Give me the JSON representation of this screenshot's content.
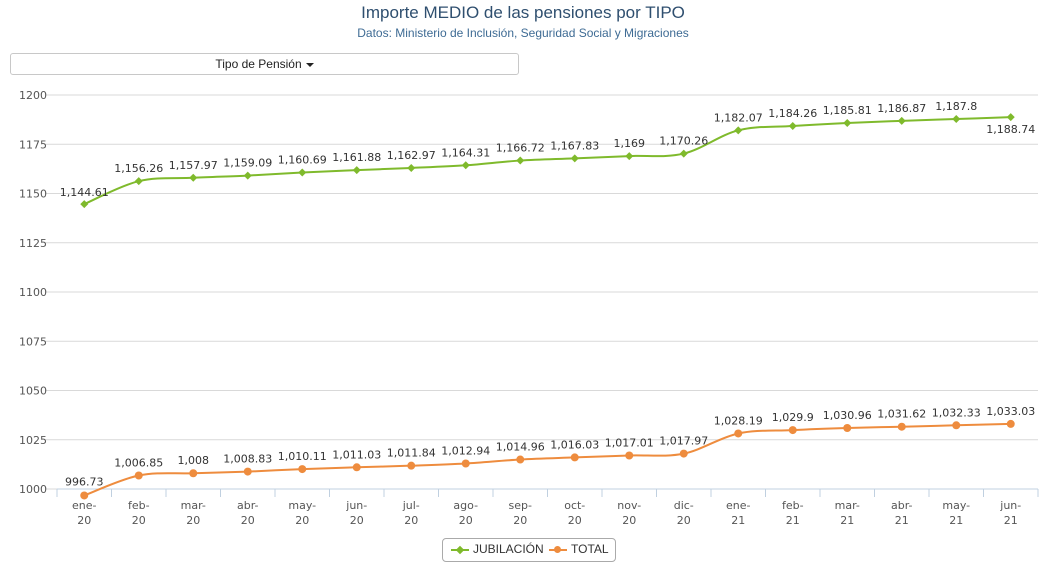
{
  "header": {
    "title": "Importe MEDIO de las pensiones por TIPO",
    "subtitle": "Datos: Ministerio de Inclusión, Seguridad Social y Migraciones"
  },
  "filter": {
    "label": "Tipo de Pensión"
  },
  "colors": {
    "jubilacion": "#7fba2c",
    "total": "#ee8c3e",
    "grid": "#d9d9d9"
  },
  "chart_data": {
    "type": "line",
    "ylim": [
      1000,
      1200
    ],
    "yticks": [
      1000,
      1025,
      1050,
      1075,
      1100,
      1125,
      1150,
      1175,
      1200
    ],
    "grid": true,
    "legend_position": "bottom-center",
    "categories": [
      [
        "ene-",
        "20"
      ],
      [
        "feb-",
        "20"
      ],
      [
        "mar-",
        "20"
      ],
      [
        "abr-",
        "20"
      ],
      [
        "may-",
        "20"
      ],
      [
        "jun-",
        "20"
      ],
      [
        "jul-",
        "20"
      ],
      [
        "ago-",
        "20"
      ],
      [
        "sep-",
        "20"
      ],
      [
        "oct-",
        "20"
      ],
      [
        "nov-",
        "20"
      ],
      [
        "dic-",
        "20"
      ],
      [
        "ene-",
        "21"
      ],
      [
        "feb-",
        "21"
      ],
      [
        "mar-",
        "21"
      ],
      [
        "abr-",
        "21"
      ],
      [
        "may-",
        "21"
      ],
      [
        "jun-",
        "21"
      ]
    ],
    "series": [
      {
        "name": "JUBILACIÓN",
        "marker": "diamond",
        "values": [
          1144.61,
          1156.26,
          1157.97,
          1159.09,
          1160.69,
          1161.88,
          1162.97,
          1164.31,
          1166.72,
          1167.83,
          1169,
          1170.26,
          1182.07,
          1184.26,
          1185.81,
          1186.87,
          1187.8,
          1188.74
        ],
        "labels": [
          "1,144.61",
          "1,156.26",
          "1,157.97",
          "1,159.09",
          "1,160.69",
          "1,161.88",
          "1,162.97",
          "1,164.31",
          "1,166.72",
          "1,167.83",
          "1,169",
          "1,170.26",
          "1,182.07",
          "1,184.26",
          "1,185.81",
          "1,186.87",
          "1,187.8",
          "1,188.74"
        ]
      },
      {
        "name": "TOTAL",
        "marker": "circle",
        "values": [
          996.73,
          1006.85,
          1008,
          1008.83,
          1010.11,
          1011.03,
          1011.84,
          1012.94,
          1014.96,
          1016.03,
          1017.01,
          1017.97,
          1028.19,
          1029.9,
          1030.96,
          1031.62,
          1032.33,
          1033.03
        ],
        "labels": [
          "996.73",
          "1,006.85",
          "1,008",
          "1,008.83",
          "1,010.11",
          "1,011.03",
          "1,011.84",
          "1,012.94",
          "1,014.96",
          "1,016.03",
          "1,017.01",
          "1,017.97",
          "1,028.19",
          "1,029.9",
          "1,030.96",
          "1,031.62",
          "1,032.33",
          "1,033.03"
        ]
      }
    ]
  }
}
